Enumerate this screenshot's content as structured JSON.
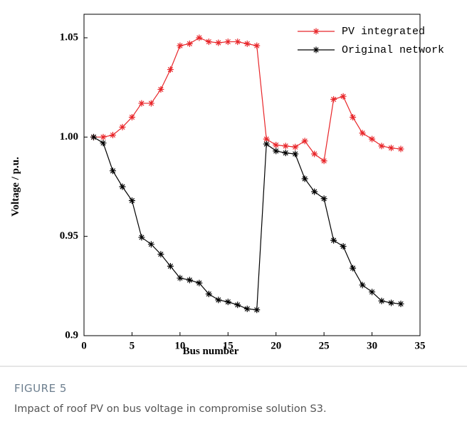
{
  "chart_data": {
    "type": "line",
    "ylabel": "Voltage / p.u.",
    "xlabel": "Bus number",
    "x": [
      1,
      2,
      3,
      4,
      5,
      6,
      7,
      8,
      9,
      10,
      11,
      12,
      13,
      14,
      15,
      16,
      17,
      18,
      19,
      20,
      21,
      22,
      23,
      24,
      25,
      26,
      27,
      28,
      29,
      30,
      31,
      32,
      33
    ],
    "series": [
      {
        "name": "PV integrated",
        "color": "#e8262a",
        "values": [
          1.0,
          1.0,
          1.001,
          1.005,
          1.01,
          1.017,
          1.017,
          1.024,
          1.034,
          1.046,
          1.047,
          1.05,
          1.048,
          1.0475,
          1.048,
          1.048,
          1.047,
          1.046,
          0.999,
          0.996,
          0.9955,
          0.995,
          0.998,
          0.9915,
          0.988,
          1.019,
          1.0205,
          1.01,
          1.002,
          0.999,
          0.9955,
          0.9945,
          0.994
        ]
      },
      {
        "name": "Original network",
        "color": "#000000",
        "values": [
          1.0,
          0.997,
          0.983,
          0.975,
          0.968,
          0.9495,
          0.946,
          0.941,
          0.935,
          0.929,
          0.928,
          0.9265,
          0.921,
          0.918,
          0.917,
          0.9155,
          0.9135,
          0.913,
          0.9965,
          0.993,
          0.992,
          0.9915,
          0.979,
          0.9725,
          0.969,
          0.948,
          0.945,
          0.934,
          0.9255,
          0.922,
          0.9175,
          0.9165,
          0.916
        ]
      }
    ],
    "xlim": [
      0,
      35
    ],
    "xticks": [
      0,
      5,
      10,
      15,
      20,
      25,
      30,
      35
    ],
    "ylim": [
      0.9,
      1.05
    ],
    "yticks": [
      0.9,
      0.95,
      {
        "value": 1,
        "label": "1.00"
      },
      1.05
    ],
    "legend": "upper-right"
  },
  "figure": {
    "label": "FIGURE 5",
    "caption": "Impact of roof PV on bus voltage in compromise solution S3."
  }
}
